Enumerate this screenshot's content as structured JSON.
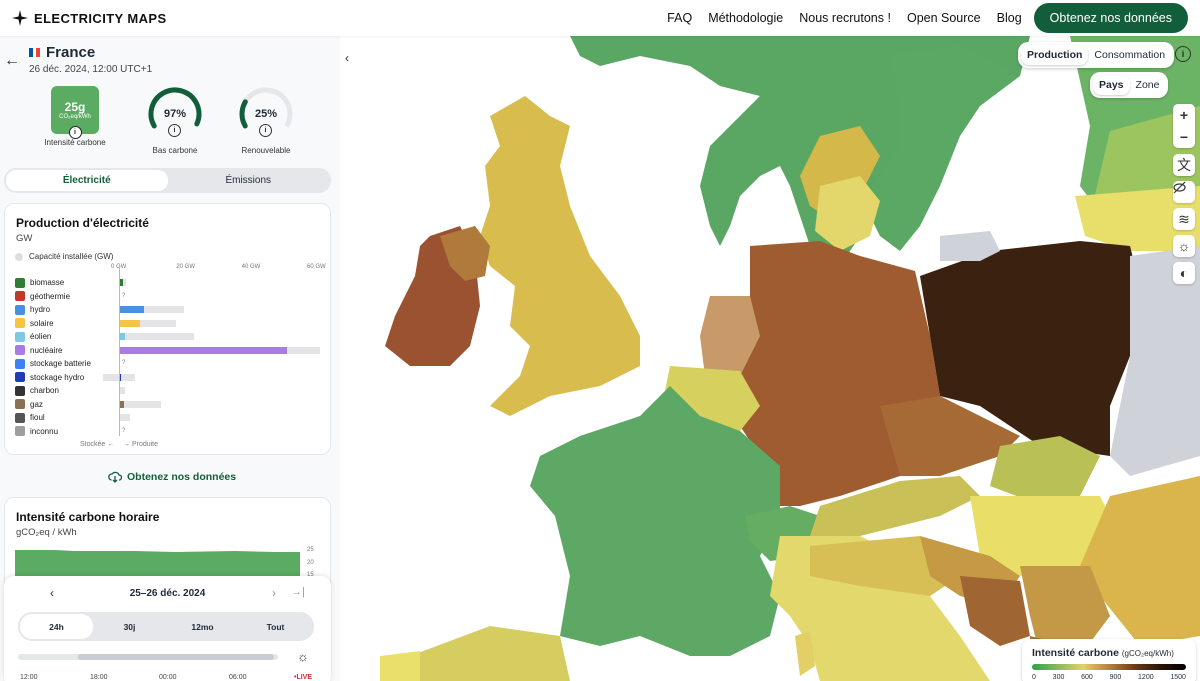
{
  "header": {
    "brand": "ELECTRICITY MAPS",
    "nav": [
      "FAQ",
      "Méthodologie",
      "Nous recrutons !",
      "Open Source",
      "Blog"
    ],
    "cta": "Obtenez nos données"
  },
  "zone": {
    "name": "France",
    "datetime": "26 déc. 2024, 12:00 UTC+1"
  },
  "kpis": {
    "carbon_value": "25g",
    "carbon_unit": "CO₂eq/kWh",
    "carbon_label": "Intensité carbone",
    "low_carbon_pct": 97,
    "low_carbon_text": "97%",
    "low_carbon_label": "Bas carbone",
    "renewable_pct": 25,
    "renewable_text": "25%",
    "renewable_label": "Renouvelable"
  },
  "tabs": [
    "Électricité",
    "Émissions"
  ],
  "production": {
    "title": "Production d'électricité",
    "unit": "GW",
    "capacity_label": "Capacité installée (GW)",
    "axis": [
      "0 GW",
      "20 GW",
      "40 GW",
      "60 GW"
    ],
    "axis_max": 60,
    "sources": [
      {
        "name": "biomasse",
        "value": 1.2,
        "capacity": 2.2,
        "color": "#2e7d32",
        "icon": "leaf-icon"
      },
      {
        "name": "géothermie",
        "value": 0,
        "capacity": 0,
        "color": "#c0392b",
        "unknown": "?",
        "icon": "geothermal-icon"
      },
      {
        "name": "hydro",
        "value": 7.8,
        "capacity": 20,
        "color": "#4a90e2",
        "icon": "water-icon"
      },
      {
        "name": "solaire",
        "value": 6.5,
        "capacity": 17.5,
        "color": "#f5c542",
        "icon": "sun-icon"
      },
      {
        "name": "éolien",
        "value": 1.8,
        "capacity": 23,
        "color": "#7ec8e3",
        "icon": "wind-icon"
      },
      {
        "name": "nucléaire",
        "value": 51.5,
        "capacity": 61.4,
        "color": "#a97ce5",
        "icon": "atom-icon"
      },
      {
        "name": "stockage batterie",
        "value": 0,
        "capacity": 0.2,
        "color": "#3b82f6",
        "unknown": "?",
        "icon": "battery-icon"
      },
      {
        "name": "stockage hydro",
        "value": 0.5,
        "capacity": 5,
        "color": "#1e40af",
        "neg": 5,
        "icon": "dam-icon"
      },
      {
        "name": "charbon",
        "value": 0,
        "capacity": 1.8,
        "color": "#333333",
        "icon": "coal-icon"
      },
      {
        "name": "gaz",
        "value": 1.5,
        "capacity": 13,
        "color": "#8a7055",
        "icon": "gas-icon"
      },
      {
        "name": "fioul",
        "value": 0.3,
        "capacity": 3.5,
        "color": "#555555",
        "icon": "oil-icon"
      },
      {
        "name": "inconnu",
        "value": 0,
        "capacity": 0,
        "color": "#9e9e9e",
        "unknown": "?",
        "icon": "unknown-icon"
      }
    ],
    "footer_left": "Stockée ←",
    "footer_right": "→ Produite"
  },
  "get_data": "Obtenez nos données",
  "hourly": {
    "title": "Intensité carbone horaire",
    "unit": "gCO₂eq / kWh",
    "yticks": [
      "25",
      "20",
      "15"
    ]
  },
  "timeline": {
    "range": "25–26 déc. 2024",
    "tabs": [
      "24h",
      "30j",
      "12mo",
      "Tout"
    ],
    "ticks": [
      "12:00",
      "18:00",
      "00:00",
      "06:00"
    ],
    "live": "•LIVE"
  },
  "map": {
    "mode": [
      "Production",
      "Consommation"
    ],
    "level": [
      "Pays",
      "Zone"
    ],
    "legend_title": "Intensité carbone",
    "legend_unit": "(gCO₂eq/kWh)",
    "legend_ticks": [
      "0",
      "300",
      "600",
      "900",
      "1200",
      "1500"
    ]
  }
}
